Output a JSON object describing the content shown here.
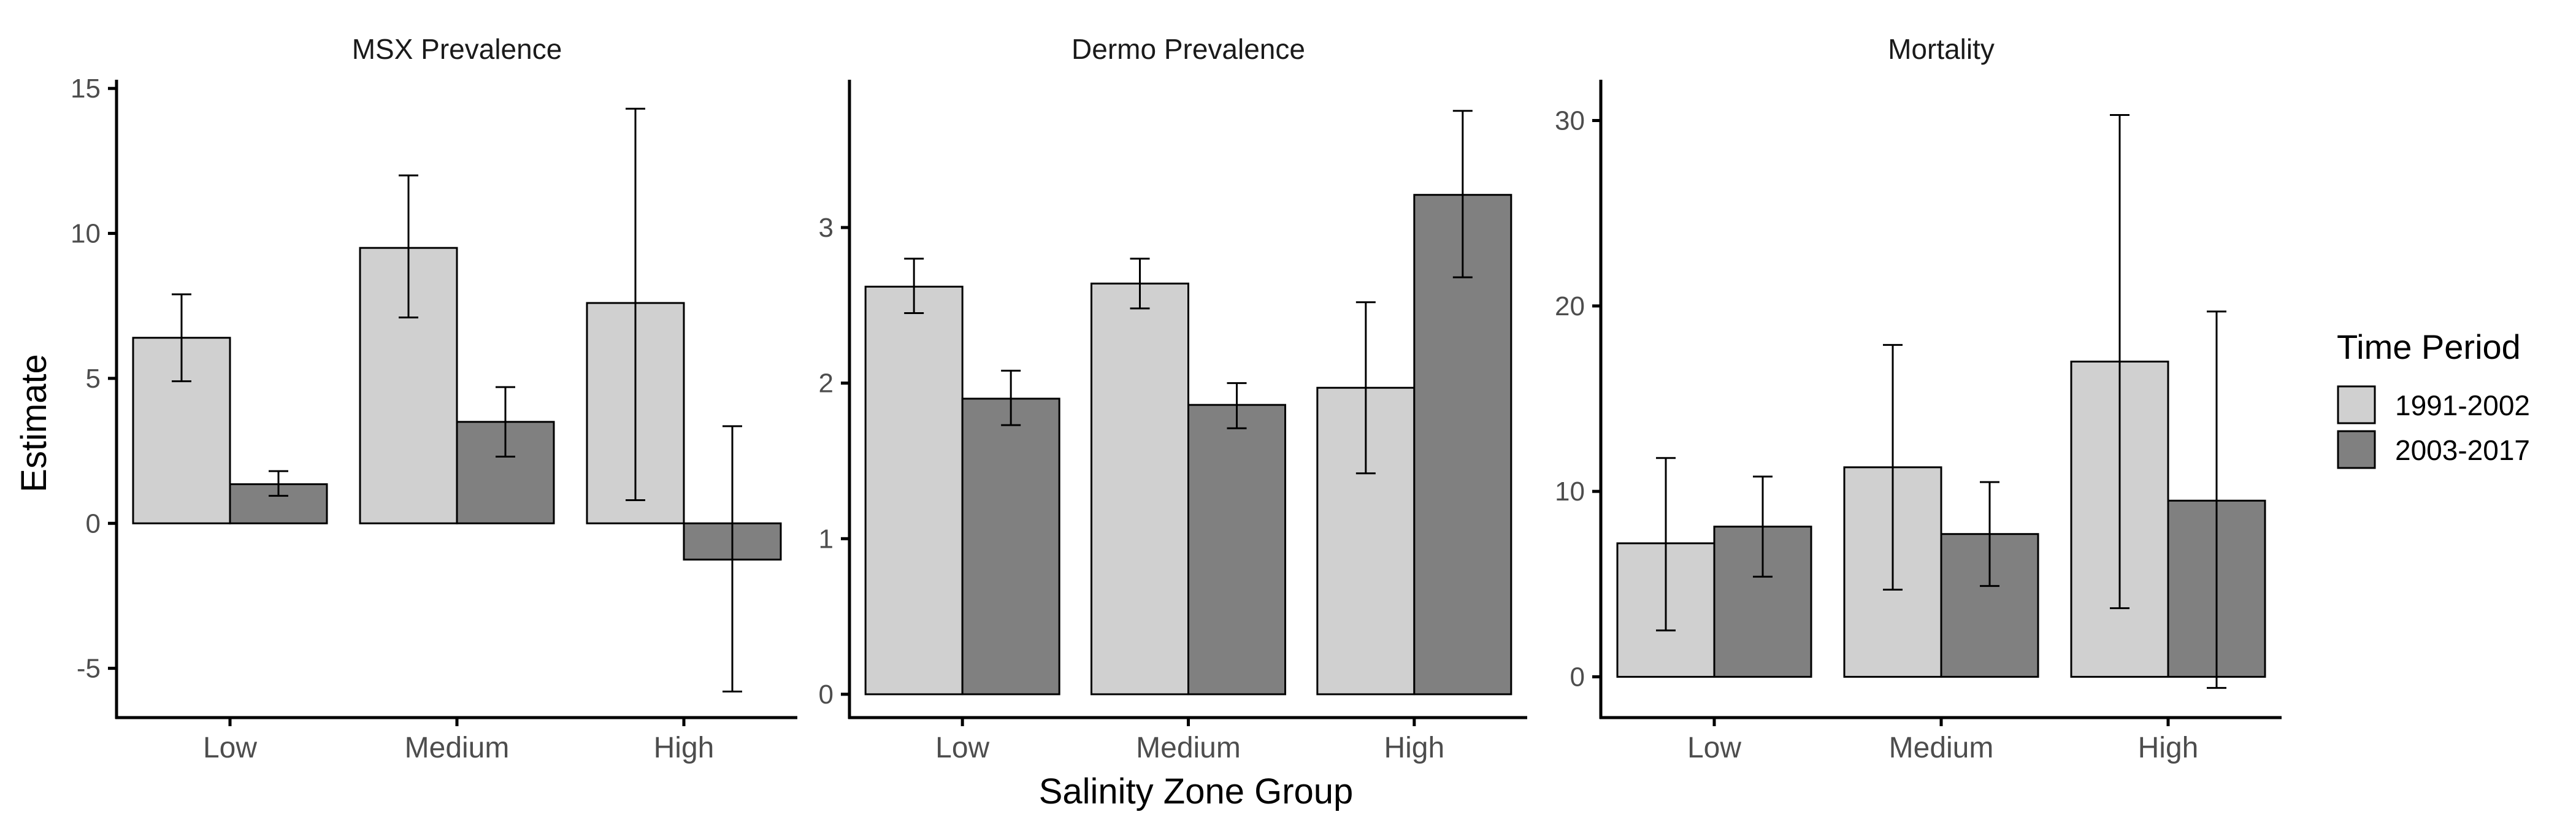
{
  "chart_data": {
    "type": "bar",
    "xlabel": "Salinity Zone Group",
    "ylabel": "Estimate",
    "legend": {
      "title": "Time Period",
      "placement": "right",
      "entries": [
        {
          "name": "1991-2002",
          "color": "#d0d0d0"
        },
        {
          "name": "2003-2017",
          "color": "#808080"
        }
      ]
    },
    "categories": [
      "Low",
      "Medium",
      "High"
    ],
    "panels": [
      {
        "title": "MSX Prevalence",
        "ylim": [
          -6.7,
          15.3
        ],
        "yticks": [
          -5,
          0,
          5,
          10,
          15
        ],
        "series": [
          {
            "name": "1991-2002",
            "values": [
              6.4,
              9.5,
              7.6
            ],
            "lower": [
              4.9,
              7.1,
              0.8
            ],
            "upper": [
              7.9,
              12.0,
              14.3
            ]
          },
          {
            "name": "2003-2017",
            "values": [
              1.35,
              3.5,
              -1.25
            ],
            "lower": [
              0.95,
              2.3,
              -5.8
            ],
            "upper": [
              1.8,
              4.7,
              3.35
            ]
          }
        ]
      },
      {
        "title": "Dermo Prevalence",
        "ylim": [
          -0.15,
          3.95
        ],
        "yticks": [
          0,
          1,
          2,
          3
        ],
        "series": [
          {
            "name": "1991-2002",
            "values": [
              2.62,
              2.64,
              1.97
            ],
            "lower": [
              2.45,
              2.48,
              1.42
            ],
            "upper": [
              2.8,
              2.8,
              2.52
            ]
          },
          {
            "name": "2003-2017",
            "values": [
              1.9,
              1.86,
              3.21
            ],
            "lower": [
              1.73,
              1.71,
              2.68
            ],
            "upper": [
              2.08,
              2.0,
              3.75
            ]
          }
        ]
      },
      {
        "title": "Mortality",
        "ylim": [
          -2.2,
          32.2
        ],
        "yticks": [
          0,
          10,
          20,
          30
        ],
        "series": [
          {
            "name": "1991-2002",
            "values": [
              7.2,
              11.3,
              17.0
            ],
            "lower": [
              2.5,
              4.7,
              3.7
            ],
            "upper": [
              11.8,
              17.9,
              30.3
            ]
          },
          {
            "name": "2003-2017",
            "values": [
              8.1,
              7.7,
              9.5
            ],
            "lower": [
              5.4,
              4.9,
              -0.6
            ],
            "upper": [
              10.8,
              10.5,
              19.7
            ]
          }
        ]
      }
    ]
  }
}
